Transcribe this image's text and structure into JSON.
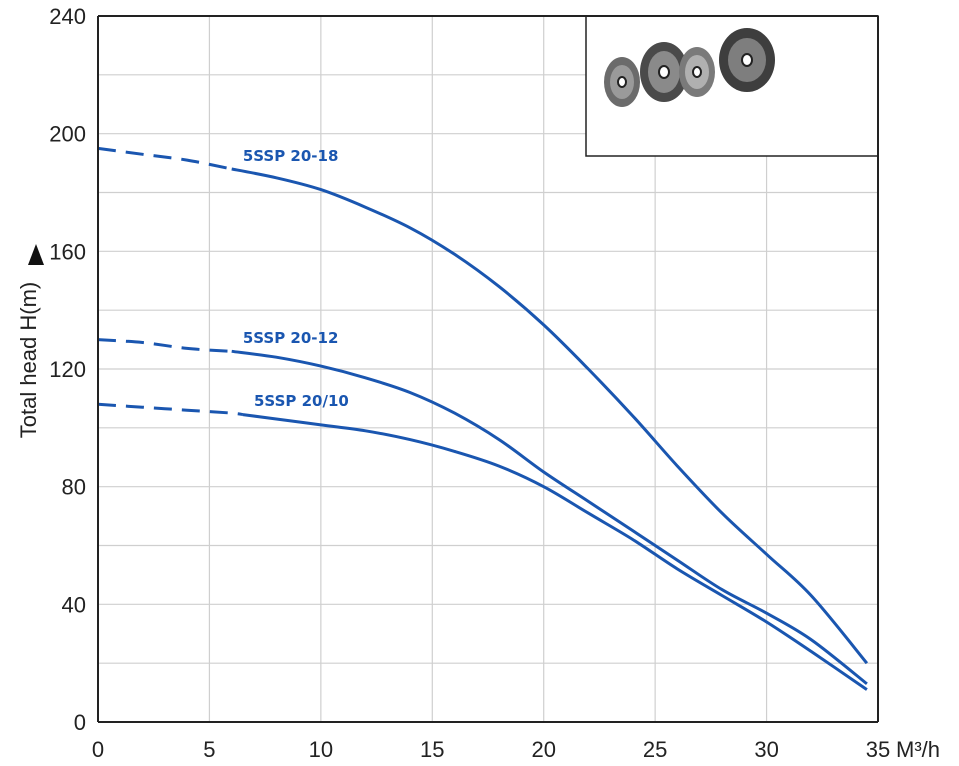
{
  "chart_data": {
    "type": "line",
    "xlabel": "M³/h",
    "ylabel": "Total head H(m)",
    "xlim": [
      0,
      35
    ],
    "ylim": [
      0,
      240
    ],
    "x_ticks": [
      "0",
      "5",
      "10",
      "15",
      "20",
      "25",
      "30",
      "35"
    ],
    "y_ticks": [
      "0",
      "40",
      "80",
      "120",
      "160",
      "200",
      "240"
    ],
    "grid": true,
    "series": [
      {
        "name": "5SSP 20-18",
        "color": "#1a56b0",
        "dashed_until_x": 6,
        "x": [
          0,
          2,
          4,
          6,
          8,
          10,
          12,
          14,
          16,
          18,
          20,
          22,
          24,
          26,
          28,
          30,
          32,
          34.5
        ],
        "y": [
          195,
          193,
          191,
          188,
          185,
          181,
          175,
          168,
          159,
          148,
          135,
          120,
          104,
          87,
          71,
          57,
          43,
          20
        ]
      },
      {
        "name": "5SSP 20-12",
        "color": "#1a56b0",
        "dashed_until_x": 6,
        "x": [
          0,
          2,
          4,
          6,
          8,
          10,
          12,
          14,
          16,
          18,
          20,
          22,
          24,
          26,
          28,
          30,
          32,
          34.5
        ],
        "y": [
          130,
          129,
          127,
          126,
          124,
          121,
          117,
          112,
          105,
          96,
          85,
          75,
          65,
          55,
          45,
          37,
          28,
          13
        ]
      },
      {
        "name": "5SSP 20/10",
        "color": "#1a56b0",
        "dashed_until_x": 6.5,
        "x": [
          0,
          2,
          4,
          6,
          8,
          10,
          12,
          14,
          16,
          18,
          20,
          22,
          24,
          26,
          28,
          30,
          32,
          34.5
        ],
        "y": [
          108,
          107,
          106,
          105,
          103,
          101,
          99,
          96,
          92,
          87,
          80,
          71,
          62,
          52,
          43,
          34,
          24,
          11
        ]
      }
    ]
  }
}
